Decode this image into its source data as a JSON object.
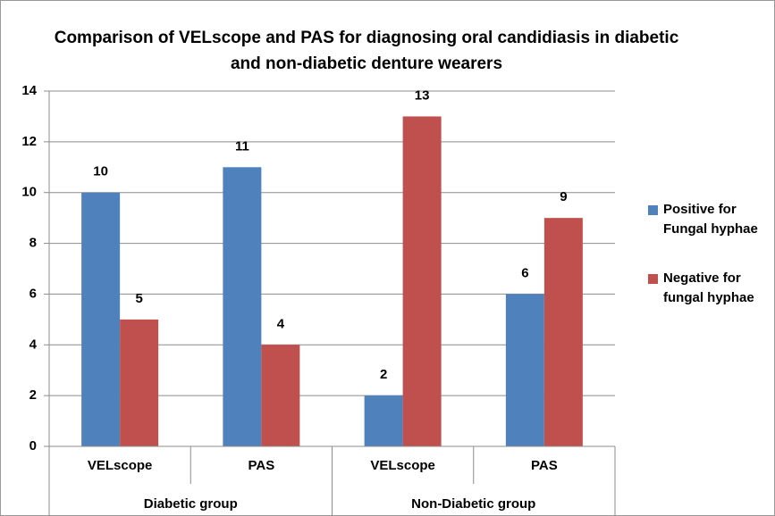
{
  "chart_data": {
    "type": "bar",
    "title": "Comparison of VELscope and PAS for diagnosing oral candidiasis in diabetic and non-diabetic denture wearers",
    "categories": [
      "VELscope",
      "PAS",
      "VELscope",
      "PAS"
    ],
    "groups": [
      {
        "name": "Diabetic group",
        "size": 2
      },
      {
        "name": "Non-Diabetic group",
        "size": 2
      }
    ],
    "series": [
      {
        "name": "Positive for Fungal hyphae",
        "color": "#4f81bd",
        "values": [
          10,
          11,
          2,
          6
        ]
      },
      {
        "name": "Negative for fungal hyphae",
        "color": "#c0504d",
        "values": [
          5,
          4,
          13,
          9
        ]
      }
    ],
    "ylim": [
      0,
      14
    ],
    "yticks": [
      0,
      2,
      4,
      6,
      8,
      10,
      12,
      14
    ],
    "grid": true,
    "legend": "right"
  }
}
